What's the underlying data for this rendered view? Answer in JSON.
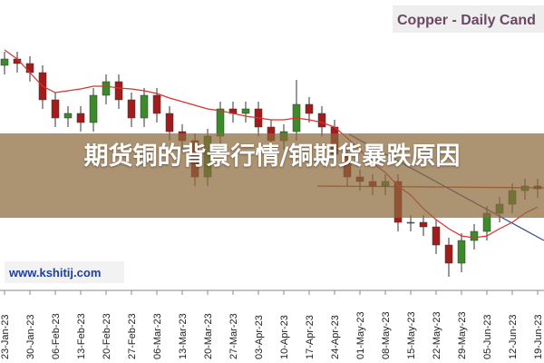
{
  "chart_data": {
    "type": "candlestick",
    "title": "Copper - Daily Cand",
    "overlay_title": "期货铜的背景行情/铜期货暴跌原因",
    "watermark": "www.kshitij.com",
    "categories": [
      "23-Jan-23",
      null,
      "30-Jan-23",
      null,
      "06-Feb-23",
      null,
      "13-Feb-23",
      null,
      "20-Feb-23",
      null,
      "27-Feb-23",
      null,
      "06-Mar-23",
      null,
      "13-Mar-23",
      null,
      "20-Mar-23",
      null,
      "27-Mar-23",
      null,
      "03-Apr-23",
      null,
      "10-Apr-23",
      null,
      "17-Apr-23",
      null,
      "24-Apr-23",
      null,
      "01-May-23",
      null,
      "08-May-23",
      null,
      "15-May-23",
      null,
      "22-May-23",
      null,
      "29-May-23",
      null,
      "05-Jun-23",
      null,
      "12-Jun-23",
      null,
      "19-Jun-23"
    ],
    "open": [
      328,
      335,
      330,
      320,
      290,
      270,
      275,
      265,
      295,
      310,
      290,
      270,
      295,
      275,
      255,
      245,
      205,
      250,
      280,
      275,
      280,
      260,
      245,
      255,
      285,
      275,
      260,
      230,
      205,
      200,
      195,
      200,
      155,
      155,
      150,
      130,
      110,
      135,
      145,
      165,
      175,
      190,
      195
    ],
    "high": [
      343,
      343,
      338,
      328,
      298,
      283,
      283,
      303,
      318,
      318,
      298,
      303,
      303,
      283,
      263,
      253,
      258,
      288,
      288,
      288,
      288,
      268,
      263,
      312,
      293,
      283,
      268,
      238,
      213,
      208,
      208,
      208,
      163,
      163,
      158,
      138,
      143,
      153,
      173,
      183,
      198,
      203,
      203
    ],
    "low": [
      318,
      320,
      310,
      280,
      260,
      260,
      255,
      255,
      285,
      280,
      260,
      260,
      265,
      245,
      235,
      195,
      195,
      240,
      265,
      265,
      250,
      235,
      235,
      245,
      265,
      250,
      220,
      195,
      190,
      185,
      185,
      145,
      145,
      140,
      120,
      95,
      100,
      125,
      135,
      155,
      165,
      180,
      182
    ],
    "close": [
      335,
      330,
      320,
      290,
      270,
      275,
      265,
      295,
      310,
      290,
      270,
      295,
      275,
      255,
      245,
      205,
      250,
      280,
      275,
      280,
      260,
      245,
      255,
      285,
      275,
      260,
      230,
      205,
      200,
      195,
      200,
      155,
      155,
      150,
      130,
      110,
      135,
      145,
      165,
      175,
      190,
      195,
      192
    ],
    "up_color": "#3c8a2a",
    "down_color": "#a31c1c",
    "moving_average": {
      "color": "#d9312b",
      "values": [
        345,
        335,
        320,
        305,
        298,
        300,
        302,
        305,
        305,
        303,
        302,
        300,
        297,
        292,
        288,
        284,
        280,
        278,
        275,
        272,
        270,
        268,
        268,
        270,
        268,
        265,
        260,
        248,
        235,
        220,
        210,
        195,
        185,
        170,
        158,
        148,
        140,
        138,
        140,
        148,
        155,
        165,
        172
      ]
    },
    "ylim": [
      80,
      400
    ]
  }
}
